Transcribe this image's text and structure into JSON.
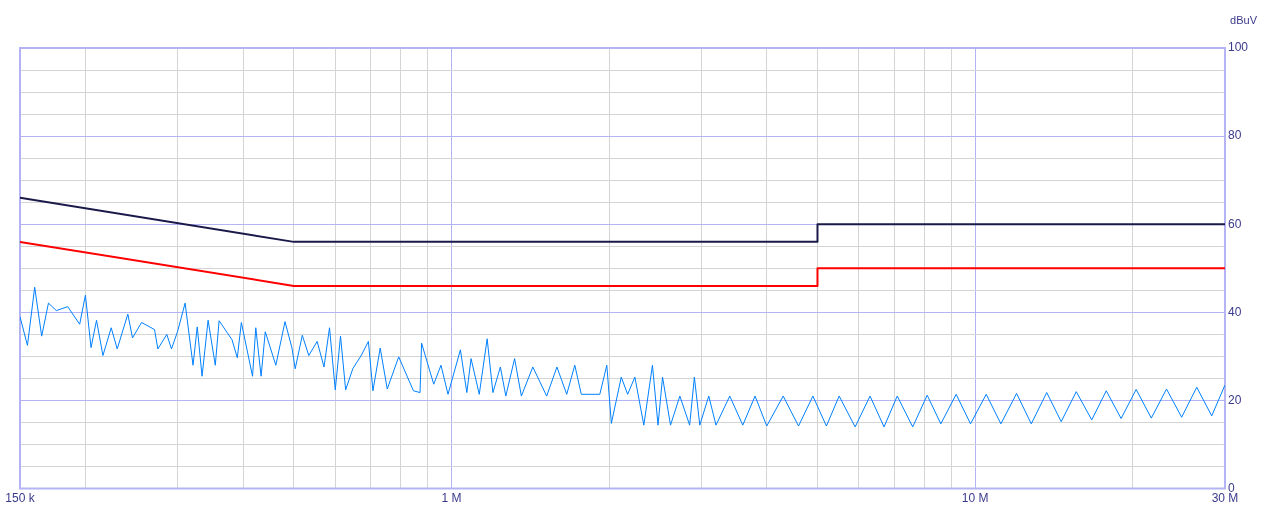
{
  "chart_data": {
    "type": "line",
    "ylabel": "dBuV",
    "log": "x",
    "grid": true,
    "marker": "none",
    "line_style": "solid",
    "xlim": [
      150000,
      30000000
    ],
    "ylim": [
      0,
      100
    ],
    "xticks": [
      {
        "value": 150000,
        "label": "150 k"
      },
      {
        "value": 200000,
        "label": null
      },
      {
        "value": 300000,
        "label": null
      },
      {
        "value": 400000,
        "label": null
      },
      {
        "value": 500000,
        "label": null
      },
      {
        "value": 600000,
        "label": null
      },
      {
        "value": 700000,
        "label": null
      },
      {
        "value": 800000,
        "label": null
      },
      {
        "value": 900000,
        "label": null
      },
      {
        "value": 1000000,
        "label": "1 M"
      },
      {
        "value": 2000000,
        "label": null
      },
      {
        "value": 3000000,
        "label": null
      },
      {
        "value": 4000000,
        "label": null
      },
      {
        "value": 5000000,
        "label": null
      },
      {
        "value": 6000000,
        "label": null
      },
      {
        "value": 7000000,
        "label": null
      },
      {
        "value": 8000000,
        "label": null
      },
      {
        "value": 9000000,
        "label": null
      },
      {
        "value": 10000000,
        "label": "10 M"
      },
      {
        "value": 20000000,
        "label": null
      },
      {
        "value": 30000000,
        "label": "30 M"
      }
    ],
    "yticks": [
      0,
      {
        "value": 5,
        "label": null
      },
      {
        "value": 10,
        "label": null
      },
      {
        "value": 15,
        "label": null
      },
      20,
      {
        "value": 25,
        "label": null
      },
      {
        "value": 30,
        "label": null
      },
      {
        "value": 35,
        "label": null
      },
      40,
      {
        "value": 45,
        "label": null
      },
      {
        "value": 50,
        "label": null
      },
      {
        "value": 55,
        "label": null
      },
      60,
      {
        "value": 65,
        "label": null
      },
      {
        "value": 70,
        "label": null
      },
      {
        "value": 75,
        "label": null
      },
      80,
      {
        "value": 85,
        "label": null
      },
      {
        "value": 90,
        "label": null
      },
      {
        "value": 95,
        "label": null
      },
      100
    ],
    "series": [
      {
        "color": "#1a1a4a",
        "x": [
          150000,
          500000,
          5000000,
          5000000,
          30000000
        ],
        "values": [
          66,
          56,
          56,
          60,
          60
        ]
      },
      {
        "color": "#ff0000",
        "x": [
          150000,
          500000,
          5000000,
          5000000,
          30000000
        ],
        "values": [
          56,
          46,
          46,
          50,
          50
        ]
      },
      {
        "color": "#0080ff",
        "x": [
          150000,
          155000,
          160000,
          165000,
          170000,
          176000,
          185000,
          195000,
          200000,
          205000,
          210000,
          216000,
          224000,
          230000,
          241000,
          246000,
          256000,
          271000,
          275000,
          286000,
          292000,
          300000,
          310000,
          321000,
          327000,
          334000,
          343000,
          354000,
          360000,
          381000,
          390000,
          397000,
          417000,
          423000,
          433000,
          441000,
          462000,
          481000,
          496000,
          503000,
          519000,
          534000,
          554000,
          571000,
          585000,
          600000,
          614000,
          628000,
          648000,
          673000,
          694000,
          708000,
          731000,
          754000,
          793000,
          846000,
          871000,
          877000,
          925000,
          955000,
          985000,
          1040000,
          1070000,
          1090000,
          1130000,
          1170000,
          1200000,
          1240000,
          1270000,
          1320000,
          1360000,
          1430000,
          1520000,
          1590000,
          1660000,
          1720000,
          1770000,
          1920000,
          1980000,
          2020000,
          2110000,
          2170000,
          2240000,
          2330000,
          2420000,
          2480000,
          2530000,
          2620000,
          2730000,
          2850000,
          2910000,
          2980000,
          3100000,
          3200000,
          3400000,
          3600000,
          3800000,
          4000000,
          4300000,
          4600000,
          4900000,
          5200000,
          5500000,
          5900000,
          6300000,
          6700000,
          7100000,
          7600000,
          8100000,
          8600000,
          9200000,
          9800000,
          10500000,
          11200000,
          12000000,
          12800000,
          13700000,
          14600000,
          15600000,
          16700000,
          17800000,
          19000000,
          20300000,
          21700000,
          23200000,
          24800000,
          26500000,
          28300000,
          30000000
        ],
        "values": [
          39.0,
          32.5,
          45.7,
          34.6,
          42.1,
          40.4,
          41.3,
          37.3,
          43.9,
          32.0,
          38.2,
          30.2,
          36.5,
          31.7,
          39.6,
          34.2,
          37.7,
          36.1,
          31.7,
          35.0,
          31.7,
          35.7,
          42.1,
          28.0,
          36.7,
          25.5,
          38.2,
          28.0,
          38.1,
          33.8,
          29.7,
          37.7,
          25.5,
          36.5,
          25.5,
          35.6,
          28.0,
          37.9,
          31.9,
          27.2,
          34.8,
          30.2,
          33.4,
          27.6,
          36.5,
          22.4,
          34.6,
          22.4,
          27.2,
          30.3,
          33.4,
          22.2,
          31.9,
          22.6,
          29.9,
          22.2,
          21.8,
          33.0,
          23.7,
          28.0,
          21.4,
          31.5,
          21.8,
          29.5,
          21.4,
          34.0,
          21.8,
          27.6,
          21.0,
          29.5,
          21.0,
          27.6,
          21.0,
          27.6,
          21.4,
          28.0,
          21.4,
          21.4,
          28.0,
          14.8,
          25.3,
          21.4,
          25.3,
          14.4,
          28.0,
          14.4,
          25.3,
          14.4,
          21.0,
          14.4,
          25.3,
          14.4,
          21.0,
          14.4,
          21.0,
          14.4,
          21.0,
          14.2,
          21.0,
          14.2,
          21.0,
          14.2,
          21.0,
          14.0,
          21.0,
          14.0,
          21.0,
          14.0,
          21.2,
          14.7,
          21.4,
          14.7,
          21.4,
          14.7,
          21.6,
          14.7,
          21.8,
          15.2,
          22.0,
          15.6,
          22.2,
          15.9,
          22.5,
          16.0,
          22.6,
          16.2,
          23.0,
          16.5,
          23.5
        ]
      }
    ]
  }
}
